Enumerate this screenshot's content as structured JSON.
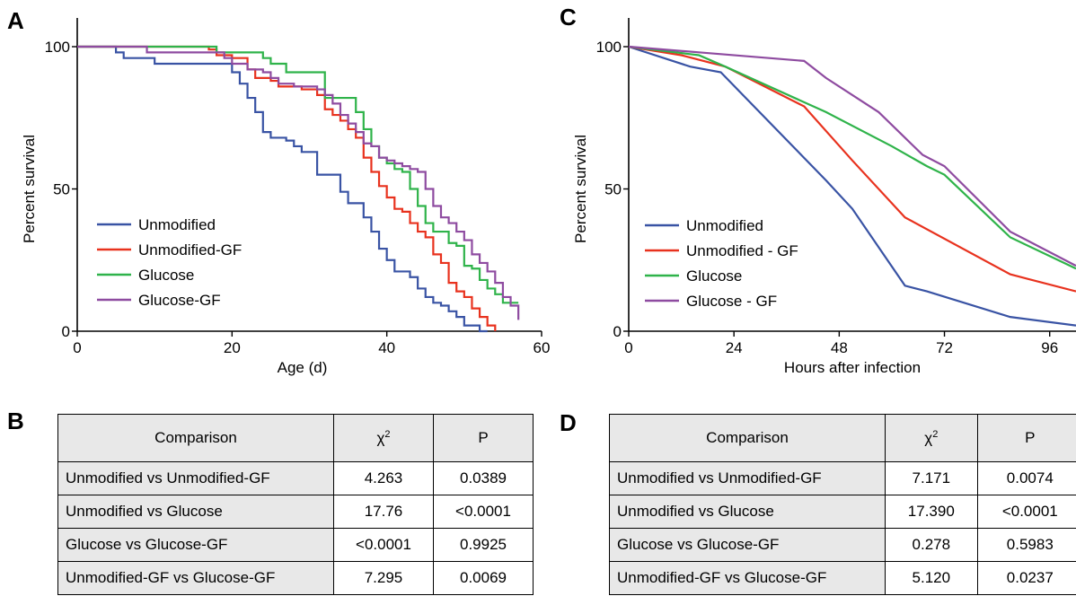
{
  "panels": {
    "a": "A",
    "b": "B",
    "c": "C",
    "d": "D"
  },
  "colors": {
    "Unmodified": "#3953a4",
    "Unmodified-GF": "#e8321e",
    "Glucose": "#2fb34a",
    "Glucose-GF": "#8e4ba0"
  },
  "chart_data": [
    {
      "type": "line",
      "title": "",
      "xlabel": "Age (d)",
      "ylabel": "Percent survival",
      "xlim": [
        0,
        60
      ],
      "ylim": [
        0,
        100
      ],
      "xticks": [
        "0",
        "20",
        "40",
        "60"
      ],
      "yticks": [
        "0",
        "50",
        "100"
      ],
      "step": true,
      "legend": "bottom-left",
      "series": [
        {
          "name": "Unmodified",
          "color": "#3953a4",
          "x": [
            0,
            5,
            6,
            10,
            19,
            20,
            21,
            22,
            23,
            24,
            25,
            27,
            28,
            29,
            31,
            33,
            34,
            35,
            37,
            38,
            39,
            40,
            41,
            43,
            44,
            45,
            46,
            47,
            48,
            49,
            50,
            52,
            53
          ],
          "y": [
            100,
            98,
            96,
            94,
            94,
            91,
            87,
            82,
            77,
            70,
            68,
            67,
            65,
            63,
            55,
            55,
            49,
            45,
            40,
            35,
            29,
            25,
            21,
            19,
            15,
            12,
            10,
            9,
            7,
            5,
            2,
            0,
            0
          ]
        },
        {
          "name": "Unmodified-GF",
          "color": "#e8321e",
          "x": [
            0,
            16,
            17,
            18,
            20,
            22,
            23,
            25,
            26,
            28,
            29,
            30,
            31,
            32,
            33,
            34,
            35,
            36,
            37,
            38,
            39,
            40,
            41,
            42,
            43,
            44,
            45,
            46,
            47,
            48,
            49,
            50,
            51,
            52,
            53,
            54
          ],
          "y": [
            100,
            100,
            99,
            97,
            96,
            92,
            89,
            88,
            86,
            86,
            85,
            85,
            83,
            78,
            76,
            74,
            71,
            68,
            61,
            56,
            51,
            47,
            43,
            42,
            38,
            35,
            33,
            27,
            24,
            17,
            14,
            12,
            8,
            5,
            2,
            0
          ]
        },
        {
          "name": "Glucose",
          "color": "#2fb34a",
          "x": [
            0,
            17,
            18,
            23,
            24,
            25,
            27,
            31,
            32,
            35,
            36,
            37,
            38,
            39,
            40,
            41,
            42,
            43,
            44,
            45,
            46,
            47,
            48,
            49,
            50,
            51,
            52,
            53,
            54,
            55,
            57
          ],
          "y": [
            100,
            100,
            98,
            98,
            96,
            94,
            91,
            91,
            82,
            82,
            77,
            71,
            65,
            61,
            59,
            57,
            56,
            50,
            44,
            38,
            35,
            35,
            31,
            30,
            23,
            22,
            18,
            15,
            13,
            10,
            10
          ]
        },
        {
          "name": "Glucose-GF",
          "color": "#8e4ba0",
          "x": [
            0,
            8,
            9,
            18,
            19,
            20,
            22,
            24,
            25,
            26,
            27,
            28,
            29,
            30,
            31,
            32,
            33,
            34,
            35,
            36,
            37,
            38,
            39,
            40,
            41,
            42,
            43,
            44,
            45,
            46,
            47,
            48,
            49,
            50,
            51,
            52,
            53,
            54,
            55,
            56,
            57
          ],
          "y": [
            100,
            100,
            98,
            98,
            96,
            94,
            92,
            91,
            89,
            87,
            87,
            86,
            86,
            86,
            85,
            83,
            80,
            76,
            73,
            70,
            66,
            65,
            61,
            60,
            59,
            58,
            57,
            56,
            50,
            44,
            40,
            38,
            35,
            32,
            27,
            24,
            21,
            17,
            12,
            9,
            4
          ]
        }
      ],
      "legend_entries": [
        "Unmodified",
        "Unmodified-GF",
        "Glucose",
        "Glucose-GF"
      ]
    },
    {
      "type": "line",
      "title": "",
      "xlabel": "Hours after infection",
      "ylabel": "Percent survival",
      "xlim": [
        0,
        102
      ],
      "ylim": [
        0,
        100
      ],
      "xticks": [
        "0",
        "24",
        "48",
        "72",
        "96"
      ],
      "yticks": [
        "0",
        "50",
        "100"
      ],
      "legend": "bottom-left",
      "series": [
        {
          "name": "Unmodified",
          "color": "#3953a4",
          "x": [
            0,
            14,
            21,
            45,
            51,
            63,
            68,
            87,
            102
          ],
          "y": [
            100,
            93,
            91,
            53,
            43,
            16,
            14,
            5,
            2
          ]
        },
        {
          "name": "Unmodified - GF",
          "color": "#e8321e",
          "x": [
            0,
            12,
            22,
            40,
            51,
            63,
            87,
            102
          ],
          "y": [
            100,
            97,
            93,
            79,
            60,
            40,
            20,
            14
          ]
        },
        {
          "name": "Glucose",
          "color": "#2fb34a",
          "x": [
            0,
            16,
            22,
            45,
            60,
            68,
            72,
            87,
            102
          ],
          "y": [
            100,
            97,
            93,
            77,
            65,
            58,
            55,
            33,
            22
          ]
        },
        {
          "name": "Glucose - GF",
          "color": "#8e4ba0",
          "x": [
            0,
            16,
            40,
            45,
            57,
            63,
            67,
            72,
            87,
            102
          ],
          "y": [
            100,
            98,
            95,
            89,
            77,
            68,
            62,
            58,
            35,
            23
          ]
        }
      ],
      "legend_entries": [
        "Unmodified",
        "Unmodified - GF",
        "Glucose",
        "Glucose - GF"
      ]
    },
    {
      "type": "table",
      "columns": [
        "Comparison",
        "χ2",
        "P"
      ],
      "rows": [
        [
          "Unmodified vs Unmodified-GF",
          "4.263",
          "0.0389"
        ],
        [
          "Unmodified vs Glucose",
          "17.76",
          "<0.0001"
        ],
        [
          "Glucose vs Glucose-GF",
          "<0.0001",
          "0.9925"
        ],
        [
          "Unmodified-GF vs Glucose-GF",
          "7.295",
          "0.0069"
        ]
      ]
    },
    {
      "type": "table",
      "columns": [
        "Comparison",
        "χ2",
        "P"
      ],
      "rows": [
        [
          "Unmodified vs Unmodified-GF",
          "7.171",
          "0.0074"
        ],
        [
          "Unmodified vs Glucose",
          "17.390",
          "<0.0001"
        ],
        [
          "Glucose vs Glucose-GF",
          "0.278",
          "0.5983"
        ],
        [
          "Unmodified-GF vs Glucose-GF",
          "5.120",
          "0.0237"
        ]
      ]
    }
  ],
  "table_headers": {
    "comparison": "Comparison",
    "chi": "χ",
    "chi_sup": "2",
    "p": "P"
  }
}
